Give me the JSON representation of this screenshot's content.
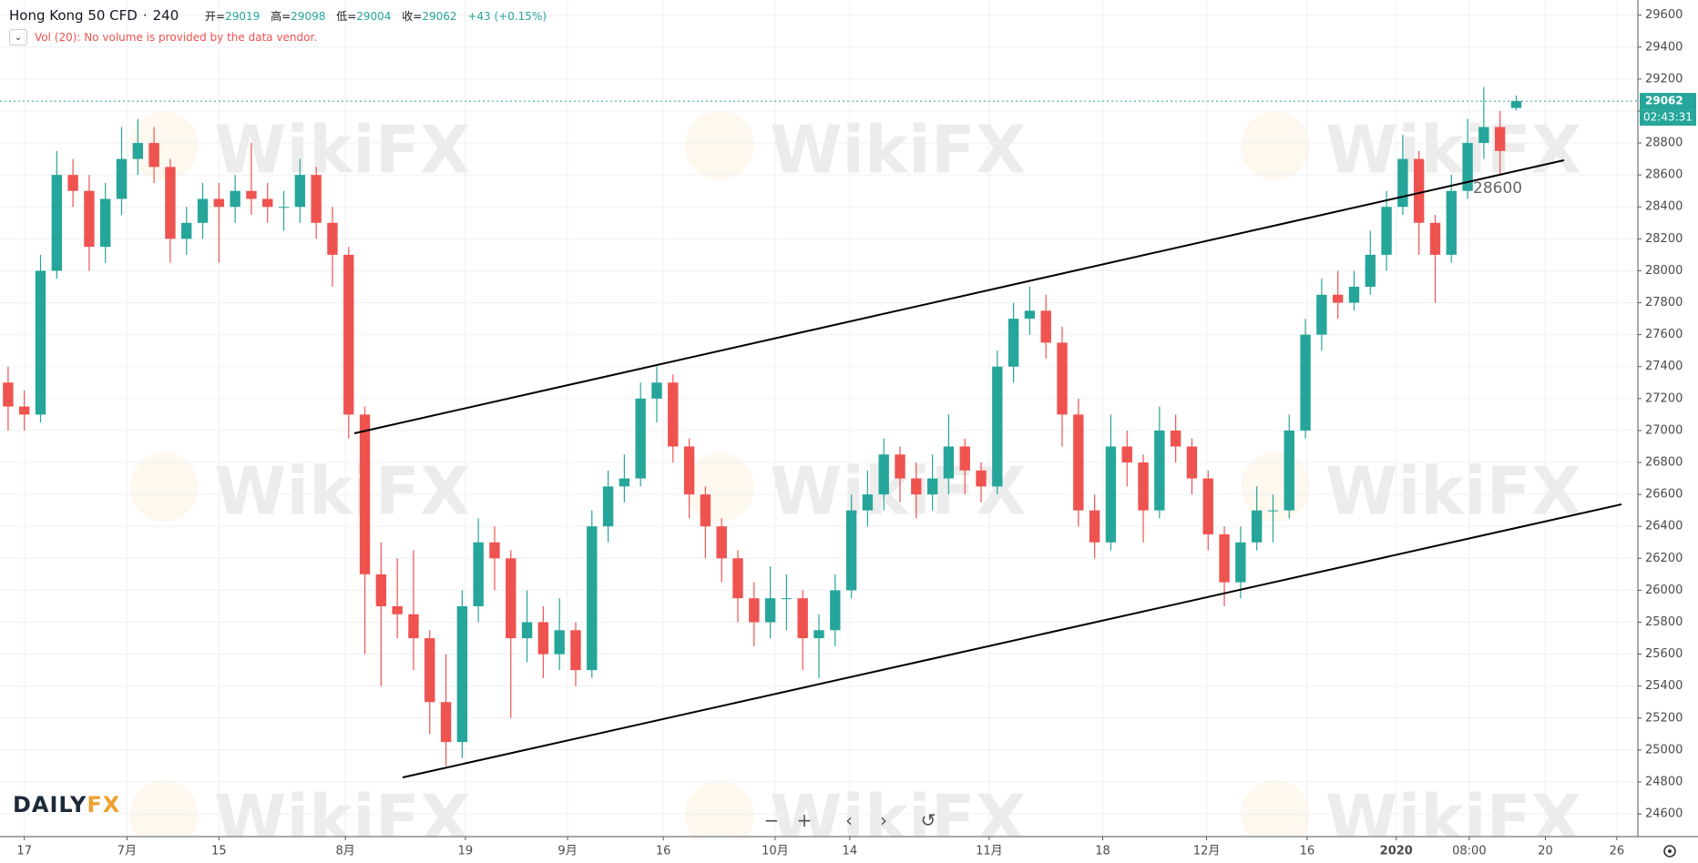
{
  "chart_data": {
    "type": "candlestick",
    "title": "Hong Kong 50 CFD",
    "interval": "240",
    "legend_labels": [
      "开=",
      "高=",
      "低=",
      "收="
    ],
    "change_text": "+43 (+0.15%)",
    "volume_note": "Vol (20): No volume is provided by the data vendor.",
    "countdown": "02:43:31",
    "annotation_label": "28600",
    "watermark": "WikiFX",
    "logo": [
      "DAILY",
      "FX"
    ],
    "up_color": "#26a69a",
    "down_color": "#ef5350",
    "grid": true,
    "xlim": [
      -0.5,
      100.5
    ],
    "xticks": [
      {
        "value": 1,
        "label": "17"
      },
      {
        "value": 7.33,
        "label": "7月"
      },
      {
        "value": 13,
        "label": "15"
      },
      {
        "value": 20.8,
        "label": "8月"
      },
      {
        "value": 28.2,
        "label": "19"
      },
      {
        "value": 34.5,
        "label": "9月"
      },
      {
        "value": 40.4,
        "label": "16"
      },
      {
        "value": 47.3,
        "label": "10月"
      },
      {
        "value": 51.9,
        "label": "14"
      },
      {
        "value": 60.5,
        "label": "11月"
      },
      {
        "value": 67.5,
        "label": "18"
      },
      {
        "value": 73.9,
        "label": "12月"
      },
      {
        "value": 80.1,
        "label": "16"
      },
      {
        "value": 85.6,
        "label": "2020"
      },
      {
        "value": 90.1,
        "label": "08:00"
      },
      {
        "value": 94.8,
        "label": "20"
      },
      {
        "value": 99.2,
        "label": "26"
      }
    ],
    "ylim": [
      24458,
      29695
    ],
    "yticks": [
      24600,
      24800,
      25000,
      25200,
      25400,
      25600,
      25800,
      26000,
      26200,
      26400,
      26600,
      26800,
      27000,
      27200,
      27400,
      27600,
      27800,
      28000,
      28200,
      28400,
      28600,
      28800,
      29000,
      29200,
      29400,
      29600
    ],
    "open": [
      27300,
      27150,
      27100,
      28000,
      28600,
      28500,
      28150,
      28450,
      28700,
      28800,
      28650,
      28200,
      28300,
      28450,
      28400,
      28500,
      28450,
      28400,
      28400,
      28600,
      28300,
      28100,
      27100,
      26100,
      25900,
      25850,
      25700,
      25300,
      25050,
      25900,
      26300,
      26200,
      25700,
      25800,
      25600,
      25750,
      25500,
      26400,
      26650,
      26700,
      27200,
      27300,
      26900,
      26600,
      26400,
      26200,
      25950,
      25800,
      25950,
      25950,
      25700,
      25750,
      26000,
      26500,
      26600,
      26850,
      26700,
      26600,
      26700,
      26900,
      26750,
      26650,
      27400,
      27700,
      27750,
      27550,
      27100,
      26500,
      26300,
      26900,
      26800,
      26500,
      27000,
      26900,
      26700,
      26350,
      26050,
      26300,
      26500,
      26500,
      27000,
      27600,
      27850,
      27800,
      27900,
      28100,
      28400,
      28700,
      28300,
      28100,
      28500,
      28800,
      28900,
      29019
    ],
    "high": [
      27400,
      27250,
      28100,
      28750,
      28700,
      28600,
      28550,
      28900,
      28950,
      28900,
      28700,
      28400,
      28550,
      28550,
      28600,
      28800,
      28550,
      28500,
      28700,
      28650,
      28400,
      28150,
      27150,
      26300,
      26200,
      26250,
      25750,
      25600,
      26000,
      26450,
      26400,
      26250,
      26000,
      25900,
      25950,
      25800,
      26500,
      26750,
      26850,
      27300,
      27400,
      27350,
      26950,
      26650,
      26450,
      26250,
      26050,
      26150,
      26100,
      26000,
      25850,
      26100,
      26600,
      26750,
      26950,
      26900,
      26800,
      26850,
      27100,
      26950,
      26800,
      27500,
      27800,
      27900,
      27850,
      27650,
      27200,
      26600,
      27100,
      27000,
      26850,
      27150,
      27100,
      26950,
      26750,
      26400,
      26400,
      26650,
      26600,
      27100,
      27700,
      27950,
      28000,
      28000,
      28250,
      28500,
      28850,
      28750,
      28350,
      28600,
      28950,
      29150,
      29000,
      29098
    ],
    "low": [
      27000,
      27000,
      27050,
      27950,
      28400,
      28000,
      28050,
      28350,
      28600,
      28550,
      28050,
      28100,
      28200,
      28050,
      28300,
      28350,
      28300,
      28250,
      28300,
      28200,
      27900,
      26950,
      25600,
      25400,
      25700,
      25500,
      25100,
      24900,
      24950,
      25800,
      26000,
      25200,
      25550,
      25450,
      25500,
      25400,
      25450,
      26300,
      26550,
      26650,
      27050,
      26800,
      26450,
      26200,
      26050,
      25800,
      25650,
      25700,
      25750,
      25500,
      25450,
      25650,
      25950,
      26400,
      26500,
      26550,
      26450,
      26500,
      26600,
      26600,
      26550,
      26600,
      27300,
      27600,
      27450,
      26900,
      26400,
      26200,
      26250,
      26650,
      26300,
      26450,
      26800,
      26600,
      26250,
      25900,
      25950,
      26250,
      26300,
      26450,
      26950,
      27500,
      27700,
      27750,
      27850,
      28000,
      28350,
      28100,
      27800,
      28050,
      28450,
      28700,
      28600,
      29004
    ],
    "close": [
      27150,
      27100,
      28000,
      28600,
      28500,
      28150,
      28450,
      28700,
      28800,
      28650,
      28200,
      28300,
      28450,
      28400,
      28500,
      28450,
      28400,
      28400,
      28600,
      28300,
      28100,
      27100,
      26100,
      25900,
      25850,
      25700,
      25300,
      25050,
      25900,
      26300,
      26200,
      25700,
      25800,
      25600,
      25750,
      25500,
      26400,
      26650,
      26700,
      27200,
      27300,
      26900,
      26600,
      26400,
      26200,
      25950,
      25800,
      25950,
      25950,
      25700,
      25750,
      26000,
      26500,
      26600,
      26850,
      26700,
      26600,
      26700,
      26900,
      26750,
      26650,
      27400,
      27700,
      27750,
      27550,
      27100,
      26500,
      26300,
      26900,
      26800,
      26500,
      27000,
      26900,
      26700,
      26350,
      26050,
      26300,
      26500,
      26500,
      27000,
      27600,
      27850,
      27800,
      27900,
      28100,
      28400,
      28700,
      28300,
      28100,
      28500,
      28800,
      28900,
      28750,
      29062
    ]
  }
}
